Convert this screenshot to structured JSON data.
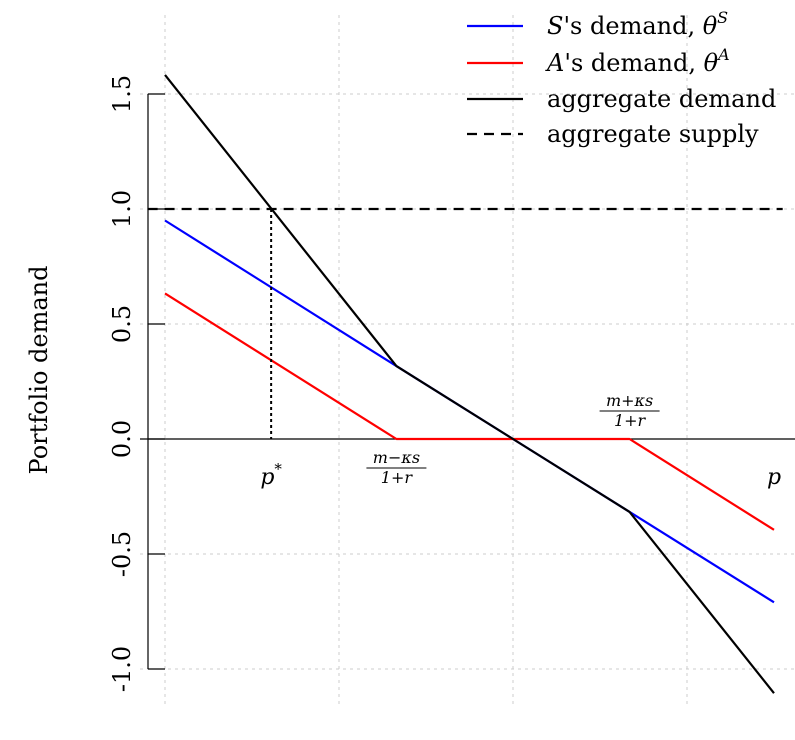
{
  "chart_data": {
    "type": "line",
    "ylabel": "Portfolio demand",
    "xlabel": "",
    "ylim": [
      -1.1,
      1.6
    ],
    "xlim": [
      0,
      3.55
    ],
    "y_ticks": [
      "-1.0",
      "-0.5",
      "0.0",
      "0.5",
      "1.0",
      "1.5"
    ],
    "y_tick_values": [
      -1.0,
      -0.5,
      0.0,
      0.5,
      1.0,
      1.5
    ],
    "x_grid_values": [
      0,
      1,
      2,
      3
    ],
    "grid": "dotted",
    "legend_position": "top-right",
    "series": [
      {
        "name": "S's demand, θ^S",
        "color": "#0000ff",
        "style": "solid",
        "x": [
          0,
          1.33,
          2.0,
          2.67,
          3.5
        ],
        "y": [
          0.95,
          0.317,
          0.0,
          -0.317,
          -0.71
        ]
      },
      {
        "name": "A's demand, θ^A",
        "color": "#ff0000",
        "style": "solid",
        "x": [
          0,
          1.33,
          2.67,
          3.5
        ],
        "y": [
          0.633,
          0.0,
          0.0,
          -0.395
        ]
      },
      {
        "name": "aggregate demand",
        "color": "#000000",
        "style": "solid",
        "x": [
          0,
          1.33,
          2.0,
          2.67,
          3.5
        ],
        "y": [
          1.583,
          0.317,
          0.0,
          -0.317,
          -1.105
        ]
      },
      {
        "name": "aggregate supply",
        "color": "#000000",
        "style": "dashed",
        "x": [
          -0.1,
          3.55
        ],
        "y": [
          1.0,
          1.0
        ]
      }
    ],
    "equilibrium": {
      "x": 0.61,
      "y": 1.0,
      "label": "p*"
    },
    "annotations": [
      {
        "x": 0.61,
        "y_text": "below-axis",
        "base": "p",
        "sup": "*"
      },
      {
        "x": 1.33,
        "y_text": "below-axis",
        "numerator": "m−κs",
        "denominator": "1+r"
      },
      {
        "x": 2.67,
        "y_text": "above-axis",
        "numerator": "m+κs",
        "denominator": "1+r"
      },
      {
        "x": 3.5,
        "y_text": "below-axis",
        "base": "p"
      }
    ],
    "legend": [
      {
        "pre": "S",
        "mid": "'s demand, θ",
        "sup": "S"
      },
      {
        "pre": "A",
        "mid": "'s demand, θ",
        "sup": "A"
      },
      {
        "pre": "",
        "mid": "aggregate demand",
        "sup": ""
      },
      {
        "pre": "",
        "mid": "aggregate supply",
        "sup": ""
      }
    ]
  }
}
